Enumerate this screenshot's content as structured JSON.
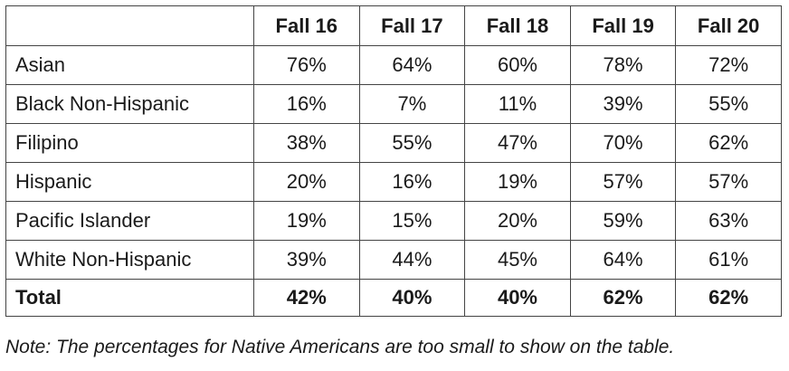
{
  "table": {
    "corner": "",
    "columns": [
      "Fall 16",
      "Fall 17",
      "Fall 18",
      "Fall 19",
      "Fall 20"
    ],
    "rows": [
      {
        "label": "Asian",
        "values": [
          "76%",
          "64%",
          "60%",
          "78%",
          "72%"
        ]
      },
      {
        "label": "Black Non-Hispanic",
        "values": [
          "16%",
          "7%",
          "11%",
          "39%",
          "55%"
        ]
      },
      {
        "label": "Filipino",
        "values": [
          "38%",
          "55%",
          "47%",
          "70%",
          "62%"
        ]
      },
      {
        "label": "Hispanic",
        "values": [
          "20%",
          "16%",
          "19%",
          "57%",
          "57%"
        ]
      },
      {
        "label": "Pacific Islander",
        "values": [
          "19%",
          "15%",
          "20%",
          "59%",
          "63%"
        ]
      },
      {
        "label": "White Non-Hispanic",
        "values": [
          "39%",
          "44%",
          "45%",
          "64%",
          "61%"
        ]
      },
      {
        "label": "Total",
        "values": [
          "42%",
          "40%",
          "40%",
          "62%",
          "62%"
        ]
      }
    ]
  },
  "note": "Note: The percentages for Native Americans are too small to show on the table."
}
